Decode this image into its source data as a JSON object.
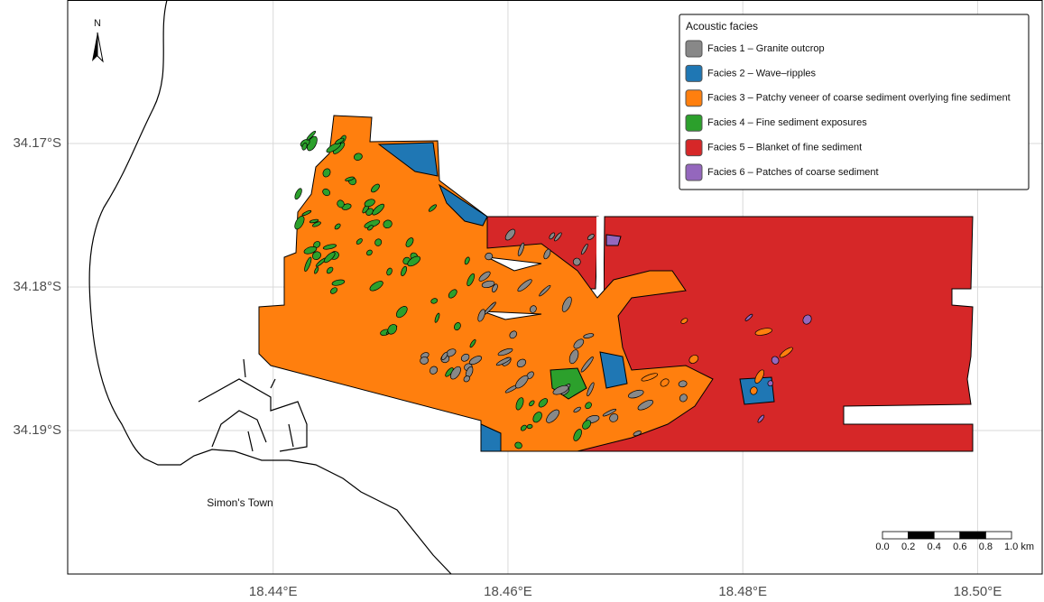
{
  "map": {
    "xlim": [
      18.4225,
      18.5055
    ],
    "ylim": [
      -34.2,
      -34.16
    ],
    "xticks": [
      {
        "value": 18.44,
        "label": "18.44°E"
      },
      {
        "value": 18.46,
        "label": "18.46°E"
      },
      {
        "value": 18.48,
        "label": "18.48°E"
      },
      {
        "value": 18.5,
        "label": "18.50°E"
      }
    ],
    "yticks": [
      {
        "value": -34.17,
        "label": "34.17°S"
      },
      {
        "value": -34.18,
        "label": "34.18°S"
      },
      {
        "value": -34.19,
        "label": "34.19°S"
      }
    ],
    "grid": true,
    "north_label": "N",
    "place_label": "Simon's Town",
    "legend": {
      "title": "Acoustic facies",
      "entries": [
        {
          "name": "Facies  1  –  Granite outcrop",
          "color": "#888888"
        },
        {
          "name": "Facies  2  –  Wave–ripples",
          "color": "#1f77b4"
        },
        {
          "name": "Facies  3  –  Patchy veneer of coarse sediment overlying fine sediment",
          "color": "#ff7f0e"
        },
        {
          "name": "Facies  4  –  Fine sediment exposures",
          "color": "#2ca02c"
        },
        {
          "name": "Facies  5  –  Blanket of fine sediment",
          "color": "#d62728"
        },
        {
          "name": "Facies  6  –  Patches of coarse sediment",
          "color": "#9467bd"
        }
      ]
    },
    "scale_bar": {
      "labels": [
        "0.0",
        "0.2",
        "0.4",
        "0.6",
        "0.8",
        "1.0 km"
      ]
    }
  }
}
